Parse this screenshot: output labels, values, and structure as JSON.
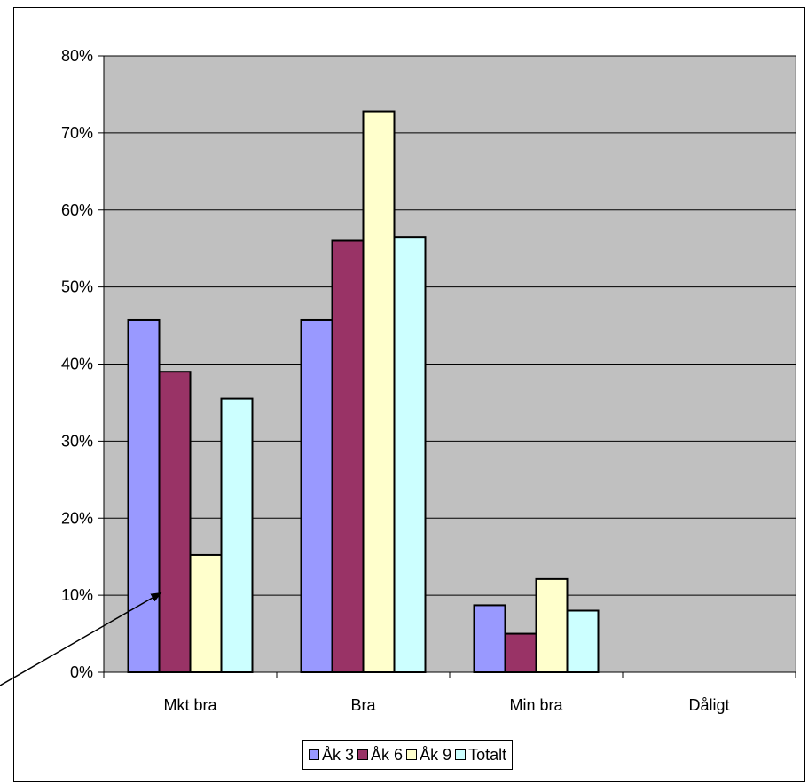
{
  "chart_data": {
    "type": "bar",
    "categories": [
      "Mkt bra",
      "Bra",
      "Min bra",
      "Dåligt"
    ],
    "series": [
      {
        "name": "Åk 3",
        "color": "#9999ff",
        "values": [
          0.457,
          0.457,
          0.087,
          0
        ]
      },
      {
        "name": "Åk 6",
        "color": "#993366",
        "values": [
          0.39,
          0.56,
          0.05,
          0
        ]
      },
      {
        "name": "Åk 9",
        "color": "#ffffcc",
        "values": [
          0.152,
          0.728,
          0.121,
          0
        ]
      },
      {
        "name": "Totalt",
        "color": "#ccffff",
        "values": [
          0.355,
          0.565,
          0.08,
          0
        ]
      }
    ],
    "y_ticks": [
      "0%",
      "10%",
      "20%",
      "30%",
      "40%",
      "50%",
      "60%",
      "70%",
      "80%"
    ],
    "ylim": [
      0,
      0.8
    ],
    "grid": true,
    "plot_background": "#c0c0c0",
    "legend_position": "bottom",
    "annotation": "arrow pointing at Mkt bra Åk 6 bar"
  }
}
